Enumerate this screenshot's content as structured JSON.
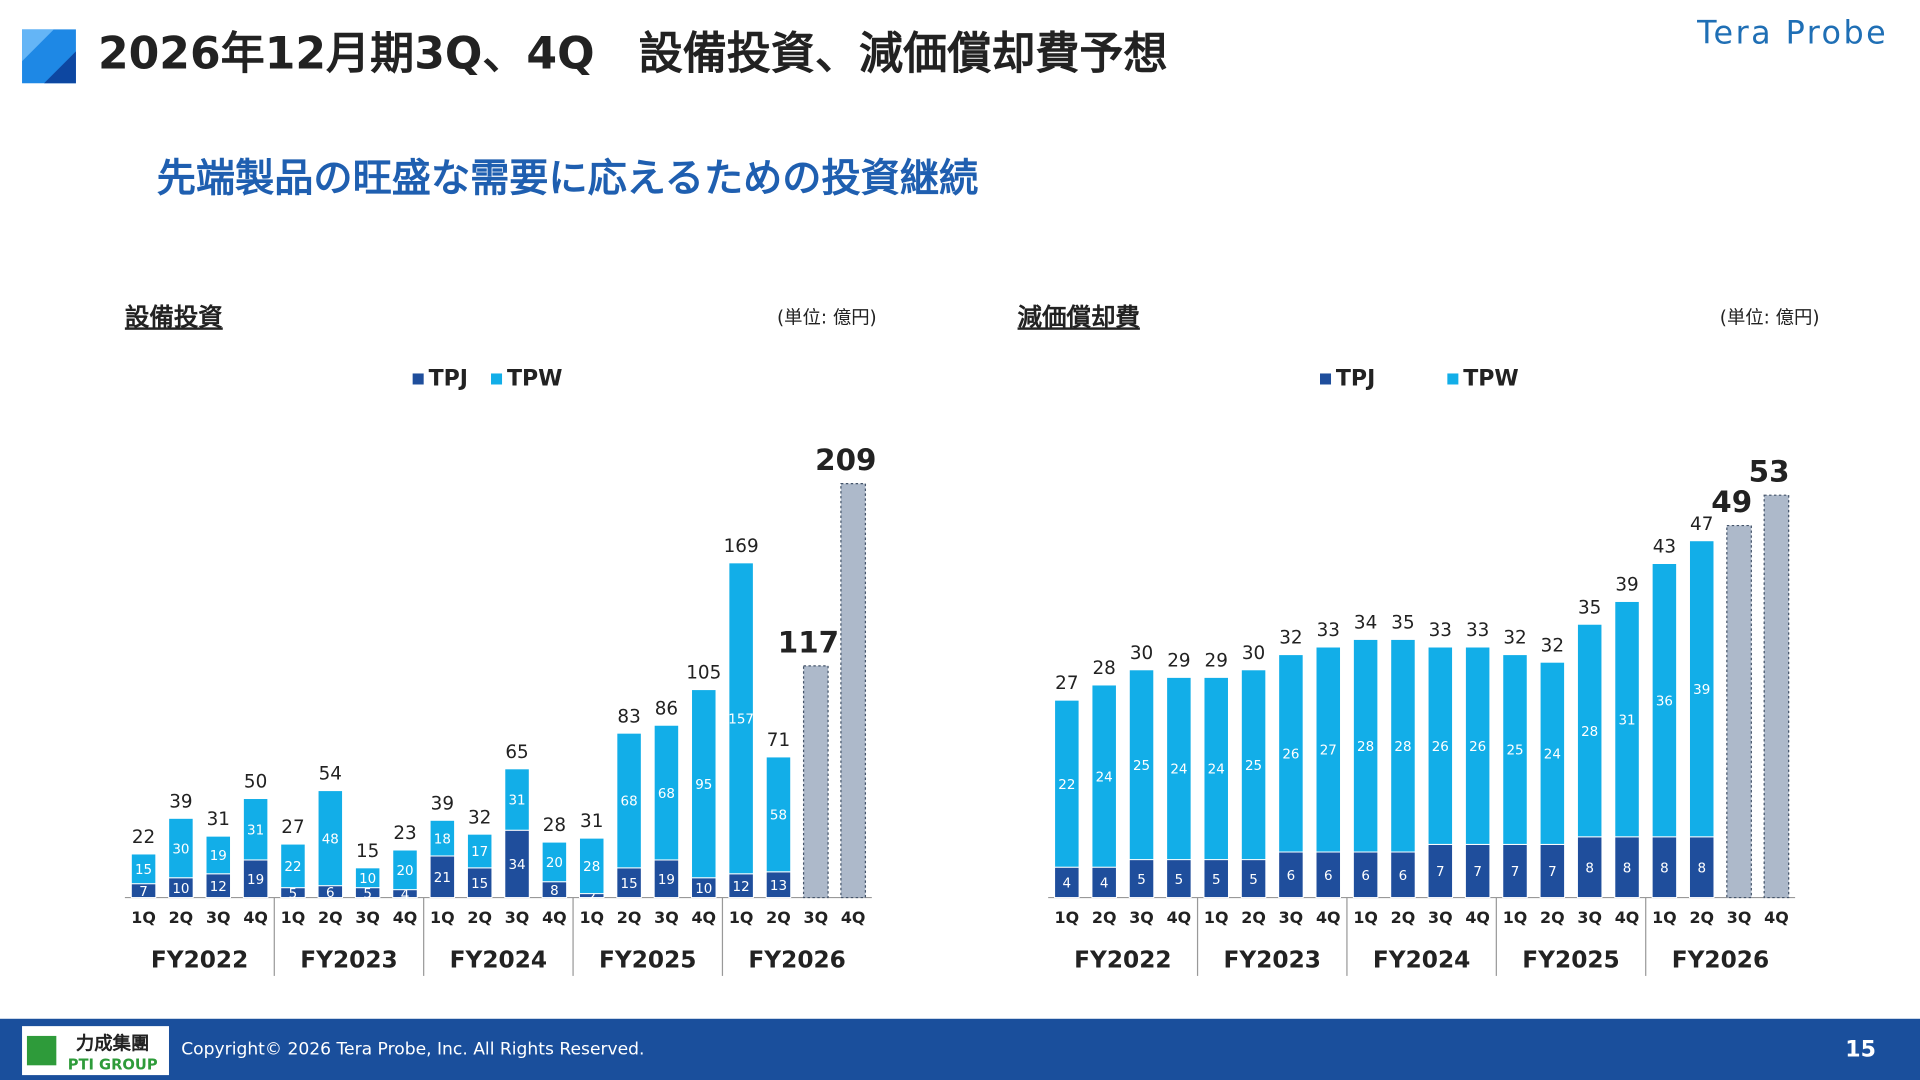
{
  "header": {
    "title": "2026年12月期3Q、4Q　設備投資、減価償却費予想",
    "logo": "Tera Probe"
  },
  "subtitle": "先端製品の旺盛な需要に応えるための投資継続",
  "chart_data": [
    {
      "type": "bar",
      "stacked": true,
      "title": "設備投資",
      "unit": "(単位: 億円)",
      "categories": [
        "1Q",
        "2Q",
        "3Q",
        "4Q",
        "1Q",
        "2Q",
        "3Q",
        "4Q",
        "1Q",
        "2Q",
        "3Q",
        "4Q",
        "1Q",
        "2Q",
        "3Q",
        "4Q",
        "1Q",
        "2Q",
        "3Q",
        "4Q"
      ],
      "groups": [
        "FY2022",
        "FY2023",
        "FY2024",
        "FY2025",
        "FY2026"
      ],
      "series": [
        {
          "name": "TPJ",
          "color": "#1f4e9c",
          "values": [
            7,
            10,
            12,
            19,
            5,
            6,
            5,
            4,
            21,
            15,
            34,
            8,
            2,
            15,
            19,
            10,
            12,
            13,
            null,
            null
          ]
        },
        {
          "name": "TPW",
          "color": "#12aee8",
          "values": [
            15,
            30,
            19,
            31,
            22,
            48,
            10,
            20,
            18,
            17,
            31,
            20,
            28,
            68,
            68,
            95,
            157,
            58,
            null,
            null
          ]
        }
      ],
      "totals": [
        22,
        39,
        31,
        50,
        27,
        54,
        15,
        23,
        39,
        32,
        65,
        28,
        31,
        83,
        86,
        105,
        169,
        71,
        null,
        null
      ],
      "forecast": {
        "color": "#adb9ca",
        "values": [
          null,
          null,
          null,
          null,
          null,
          null,
          null,
          null,
          null,
          null,
          null,
          null,
          null,
          null,
          null,
          null,
          null,
          null,
          117,
          209
        ]
      },
      "ylim": [
        0,
        230
      ]
    },
    {
      "type": "bar",
      "stacked": true,
      "title": "減価償却費",
      "unit": "(単位: 億円)",
      "categories": [
        "1Q",
        "2Q",
        "3Q",
        "4Q",
        "1Q",
        "2Q",
        "3Q",
        "4Q",
        "1Q",
        "2Q",
        "3Q",
        "4Q",
        "1Q",
        "2Q",
        "3Q",
        "4Q",
        "1Q",
        "2Q",
        "3Q",
        "4Q"
      ],
      "groups": [
        "FY2022",
        "FY2023",
        "FY2024",
        "FY2025",
        "FY2026"
      ],
      "series": [
        {
          "name": "TPJ",
          "color": "#1f4e9c",
          "values": [
            4,
            4,
            5,
            5,
            5,
            5,
            6,
            6,
            6,
            6,
            7,
            7,
            7,
            7,
            8,
            8,
            8,
            8,
            null,
            null
          ]
        },
        {
          "name": "TPW",
          "color": "#12aee8",
          "values": [
            22,
            24,
            25,
            24,
            24,
            25,
            26,
            27,
            28,
            28,
            26,
            26,
            25,
            24,
            28,
            31,
            36,
            39,
            null,
            null
          ]
        }
      ],
      "totals": [
        27,
        28,
        30,
        29,
        29,
        30,
        32,
        33,
        34,
        35,
        33,
        33,
        32,
        32,
        35,
        39,
        43,
        47,
        null,
        null
      ],
      "forecast": {
        "color": "#adb9ca",
        "values": [
          null,
          null,
          null,
          null,
          null,
          null,
          null,
          null,
          null,
          null,
          null,
          null,
          null,
          null,
          null,
          null,
          null,
          null,
          49,
          53
        ]
      },
      "ylim": [
        0,
        60
      ]
    }
  ],
  "footer": {
    "logo_cn": "力成集團",
    "logo_en": "PTI GROUP",
    "copyright": "Copyright©  2026 Tera Probe, Inc. All Rights Reserved.",
    "page": "15"
  }
}
